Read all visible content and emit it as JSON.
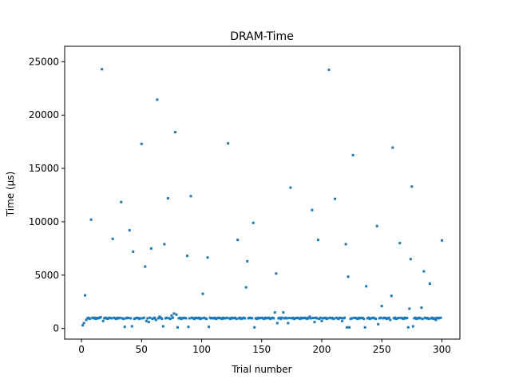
{
  "chart_data": {
    "type": "scatter",
    "title": "DRAM-Time",
    "xlabel": "Trial number",
    "ylabel": "Time (μs)",
    "color": "#1f77b4",
    "xlim": [
      -14,
      315
    ],
    "ylim": [
      -1000,
      26450
    ],
    "xticks": [
      0,
      50,
      100,
      150,
      200,
      250,
      300
    ],
    "yticks": [
      0,
      5000,
      10000,
      15000,
      20000,
      25000
    ],
    "x": [
      1,
      2,
      3,
      4,
      5,
      6,
      7,
      8,
      9,
      10,
      11,
      12,
      13,
      14,
      15,
      16,
      17,
      18,
      19,
      20,
      21,
      22,
      23,
      24,
      25,
      26,
      27,
      28,
      29,
      30,
      31,
      32,
      33,
      34,
      35,
      36,
      37,
      38,
      39,
      40,
      41,
      42,
      43,
      44,
      45,
      46,
      47,
      48,
      49,
      50,
      51,
      52,
      53,
      54,
      55,
      56,
      57,
      58,
      59,
      60,
      61,
      62,
      63,
      64,
      65,
      66,
      67,
      68,
      69,
      70,
      71,
      72,
      73,
      74,
      75,
      76,
      77,
      78,
      79,
      80,
      81,
      82,
      83,
      84,
      85,
      86,
      87,
      88,
      89,
      90,
      91,
      92,
      93,
      94,
      95,
      96,
      97,
      98,
      99,
      100,
      101,
      102,
      103,
      104,
      105,
      106,
      107,
      108,
      109,
      110,
      111,
      112,
      113,
      114,
      115,
      116,
      117,
      118,
      119,
      120,
      121,
      122,
      123,
      124,
      125,
      126,
      127,
      128,
      129,
      130,
      131,
      132,
      133,
      134,
      135,
      136,
      137,
      138,
      139,
      140,
      141,
      142,
      143,
      144,
      145,
      146,
      147,
      148,
      149,
      150,
      151,
      152,
      153,
      154,
      155,
      156,
      157,
      158,
      159,
      160,
      161,
      162,
      163,
      164,
      165,
      166,
      167,
      168,
      169,
      170,
      171,
      172,
      173,
      174,
      175,
      176,
      177,
      178,
      179,
      180,
      181,
      182,
      183,
      184,
      185,
      186,
      187,
      188,
      189,
      190,
      191,
      192,
      193,
      194,
      195,
      196,
      197,
      198,
      199,
      200,
      201,
      202,
      203,
      204,
      205,
      206,
      207,
      208,
      209,
      210,
      211,
      212,
      213,
      214,
      215,
      216,
      217,
      218,
      219,
      220,
      221,
      222,
      223,
      224,
      225,
      226,
      227,
      228,
      229,
      230,
      231,
      232,
      233,
      234,
      235,
      236,
      237,
      238,
      239,
      240,
      241,
      242,
      243,
      244,
      245,
      246,
      247,
      248,
      249,
      250,
      251,
      252,
      253,
      254,
      255,
      256,
      257,
      258,
      259,
      260,
      261,
      262,
      263,
      264,
      265,
      266,
      267,
      268,
      269,
      270,
      271,
      272,
      273,
      274,
      275,
      276,
      277,
      278,
      279,
      280,
      281,
      282,
      283,
      284,
      285,
      286,
      287,
      288,
      289,
      290,
      291,
      292,
      293,
      294,
      295,
      296,
      297,
      298,
      299,
      300
    ],
    "values": [
      300,
      500,
      3100,
      800,
      950,
      1000,
      900,
      10200,
      1000,
      950,
      1000,
      900,
      980,
      950,
      1000,
      1050,
      24300,
      700,
      950,
      1000,
      950,
      900,
      1000,
      980,
      950,
      8400,
      1000,
      950,
      900,
      1000,
      950,
      1000,
      11850,
      950,
      900,
      150,
      950,
      1000,
      980,
      9200,
      950,
      200,
      7200,
      900,
      950,
      1000,
      980,
      900,
      950,
      17300,
      950,
      1000,
      5800,
      700,
      950,
      600,
      1000,
      7500,
      900,
      950,
      1000,
      800,
      21450,
      950,
      1100,
      1000,
      900,
      200,
      7900,
      950,
      1000,
      12200,
      950,
      900,
      1200,
      1000,
      1400,
      18400,
      1300,
      100,
      950,
      1000,
      900,
      950,
      1000,
      980,
      950,
      6800,
      150,
      950,
      12400,
      1000,
      950,
      900,
      1000,
      980,
      950,
      1000,
      900,
      950,
      3250,
      1000,
      950,
      900,
      6650,
      150,
      1000,
      950,
      980,
      950,
      1000,
      900,
      950,
      1000,
      980,
      950,
      900,
      1000,
      950,
      955,
      1000,
      17350,
      950,
      900,
      1000,
      950,
      980,
      1000,
      900,
      8300,
      950,
      1000,
      900,
      950,
      1000,
      950,
      3850,
      6300,
      950,
      1000,
      980,
      950,
      9900,
      100,
      950,
      900,
      1000,
      950,
      980,
      1000,
      950,
      900,
      1000,
      950,
      980,
      1000,
      900,
      950,
      1000,
      950,
      1500,
      5150,
      500,
      950,
      1000,
      900,
      1000,
      1500,
      950,
      1000,
      950,
      500,
      980,
      13200,
      950,
      1000,
      900,
      950,
      980,
      1000,
      950,
      900,
      1000,
      950,
      980,
      1000,
      950,
      900,
      1000,
      1100,
      950,
      11100,
      980,
      600,
      1000,
      950,
      8300,
      900,
      1000,
      700,
      950,
      980,
      1000,
      900,
      950,
      24250,
      1000,
      950,
      980,
      900,
      12150,
      1000,
      950,
      900,
      1000,
      980,
      700,
      950,
      1000,
      7900,
      100,
      4850,
      100,
      900,
      950,
      16250,
      1000,
      980,
      950,
      900,
      1000,
      950,
      980,
      1000,
      900,
      100,
      3950,
      950,
      1000,
      900,
      950,
      980,
      1000,
      950,
      900,
      9600,
      400,
      950,
      1000,
      2100,
      950,
      1000,
      980,
      900,
      950,
      1000,
      800,
      3050,
      16950,
      950,
      1000,
      900,
      950,
      980,
      8000,
      1000,
      950,
      900,
      1000,
      950,
      980,
      100,
      1850,
      6500,
      13300,
      200,
      950,
      1000,
      900,
      950,
      1000,
      950,
      1950,
      900,
      5350,
      1000,
      950,
      980,
      900,
      4200,
      950,
      1000,
      900,
      950,
      800,
      1000,
      950,
      980,
      1000,
      8250
    ]
  }
}
